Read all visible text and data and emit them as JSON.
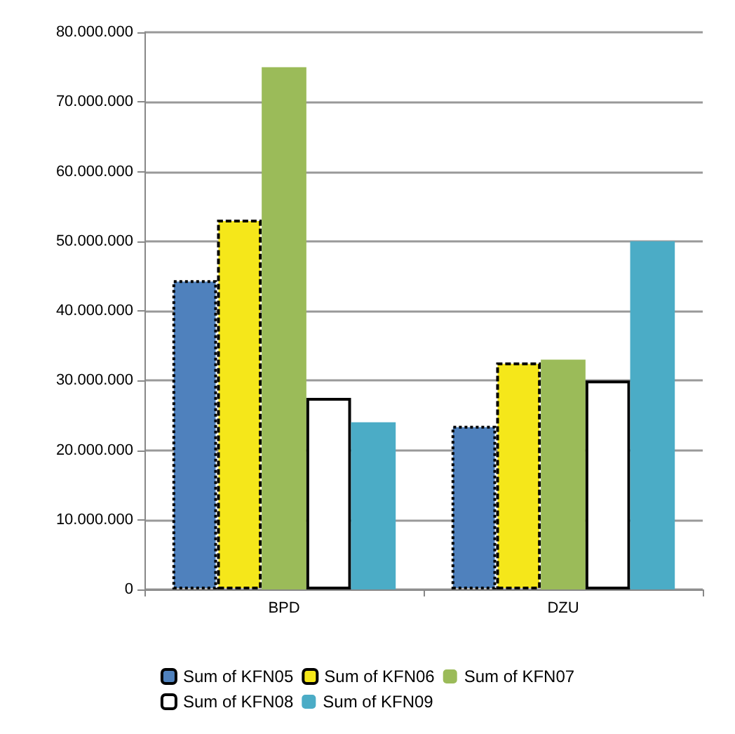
{
  "chart_data": {
    "type": "bar",
    "categories": [
      "BPD",
      "DZU"
    ],
    "series": [
      {
        "name": "Sum of KFN05",
        "color": "#4f81bd",
        "values": [
          44400000,
          23500000
        ],
        "line_style": "dotted"
      },
      {
        "name": "Sum of KFN06",
        "color": "#f5e71a",
        "values": [
          53100000,
          32600000
        ],
        "line_style": "dashed"
      },
      {
        "name": "Sum of KFN07",
        "color": "#9bbb59",
        "values": [
          75000000,
          33000000
        ]
      },
      {
        "name": "Sum of KFN08",
        "color": "#ffffff",
        "values": [
          27500000,
          30000000
        ],
        "line_style": "solid"
      },
      {
        "name": "Sum of KFN09",
        "color": "#4bacc6",
        "values": [
          24000000,
          50000000
        ]
      }
    ],
    "ylim": [
      0,
      80000000
    ],
    "yticks": [
      {
        "value": 0,
        "label": "0"
      },
      {
        "value": 10000000,
        "label": "10.000.000"
      },
      {
        "value": 20000000,
        "label": "20.000.000"
      },
      {
        "value": 30000000,
        "label": "30.000.000"
      },
      {
        "value": 40000000,
        "label": "40.000.000"
      },
      {
        "value": 50000000,
        "label": "50.000.000"
      },
      {
        "value": 60000000,
        "label": "60.000.000"
      },
      {
        "value": 70000000,
        "label": "70.000.000"
      },
      {
        "value": 80000000,
        "label": "80.000.000"
      }
    ],
    "grid": "y",
    "legend": "bottom"
  }
}
